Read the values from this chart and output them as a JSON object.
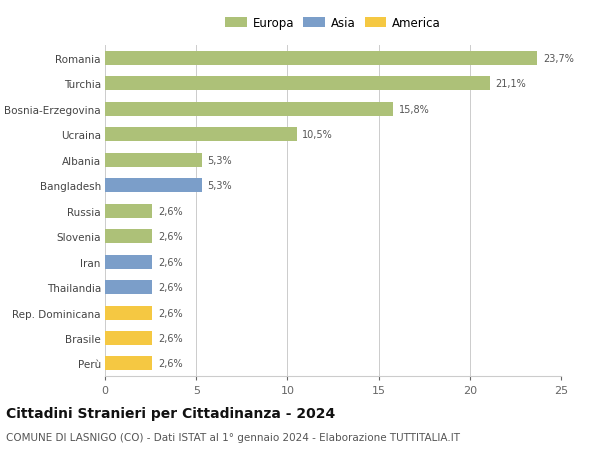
{
  "categories": [
    "Romania",
    "Turchia",
    "Bosnia-Erzegovina",
    "Ucraina",
    "Albania",
    "Bangladesh",
    "Russia",
    "Slovenia",
    "Iran",
    "Thailandia",
    "Rep. Dominicana",
    "Brasile",
    "Perù"
  ],
  "values": [
    23.7,
    21.1,
    15.8,
    10.5,
    5.3,
    5.3,
    2.6,
    2.6,
    2.6,
    2.6,
    2.6,
    2.6,
    2.6
  ],
  "labels": [
    "23,7%",
    "21,1%",
    "15,8%",
    "10,5%",
    "5,3%",
    "5,3%",
    "2,6%",
    "2,6%",
    "2,6%",
    "2,6%",
    "2,6%",
    "2,6%",
    "2,6%"
  ],
  "continent": [
    "Europa",
    "Europa",
    "Europa",
    "Europa",
    "Europa",
    "Asia",
    "Europa",
    "Europa",
    "Asia",
    "Asia",
    "America",
    "America",
    "America"
  ],
  "colors": {
    "Europa": "#adc178",
    "Asia": "#7b9ec9",
    "America": "#f5c842"
  },
  "legend_entries": [
    "Europa",
    "Asia",
    "America"
  ],
  "legend_colors": [
    "#adc178",
    "#7b9ec9",
    "#f5c842"
  ],
  "xlim": [
    0,
    25
  ],
  "xticks": [
    0,
    5,
    10,
    15,
    20,
    25
  ],
  "title": "Cittadini Stranieri per Cittadinanza - 2024",
  "subtitle": "COMUNE DI LASNIGO (CO) - Dati ISTAT al 1° gennaio 2024 - Elaborazione TUTTITALIA.IT",
  "title_fontsize": 10,
  "subtitle_fontsize": 7.5,
  "bar_height": 0.55,
  "background_color": "#ffffff",
  "grid_color": "#cccccc"
}
